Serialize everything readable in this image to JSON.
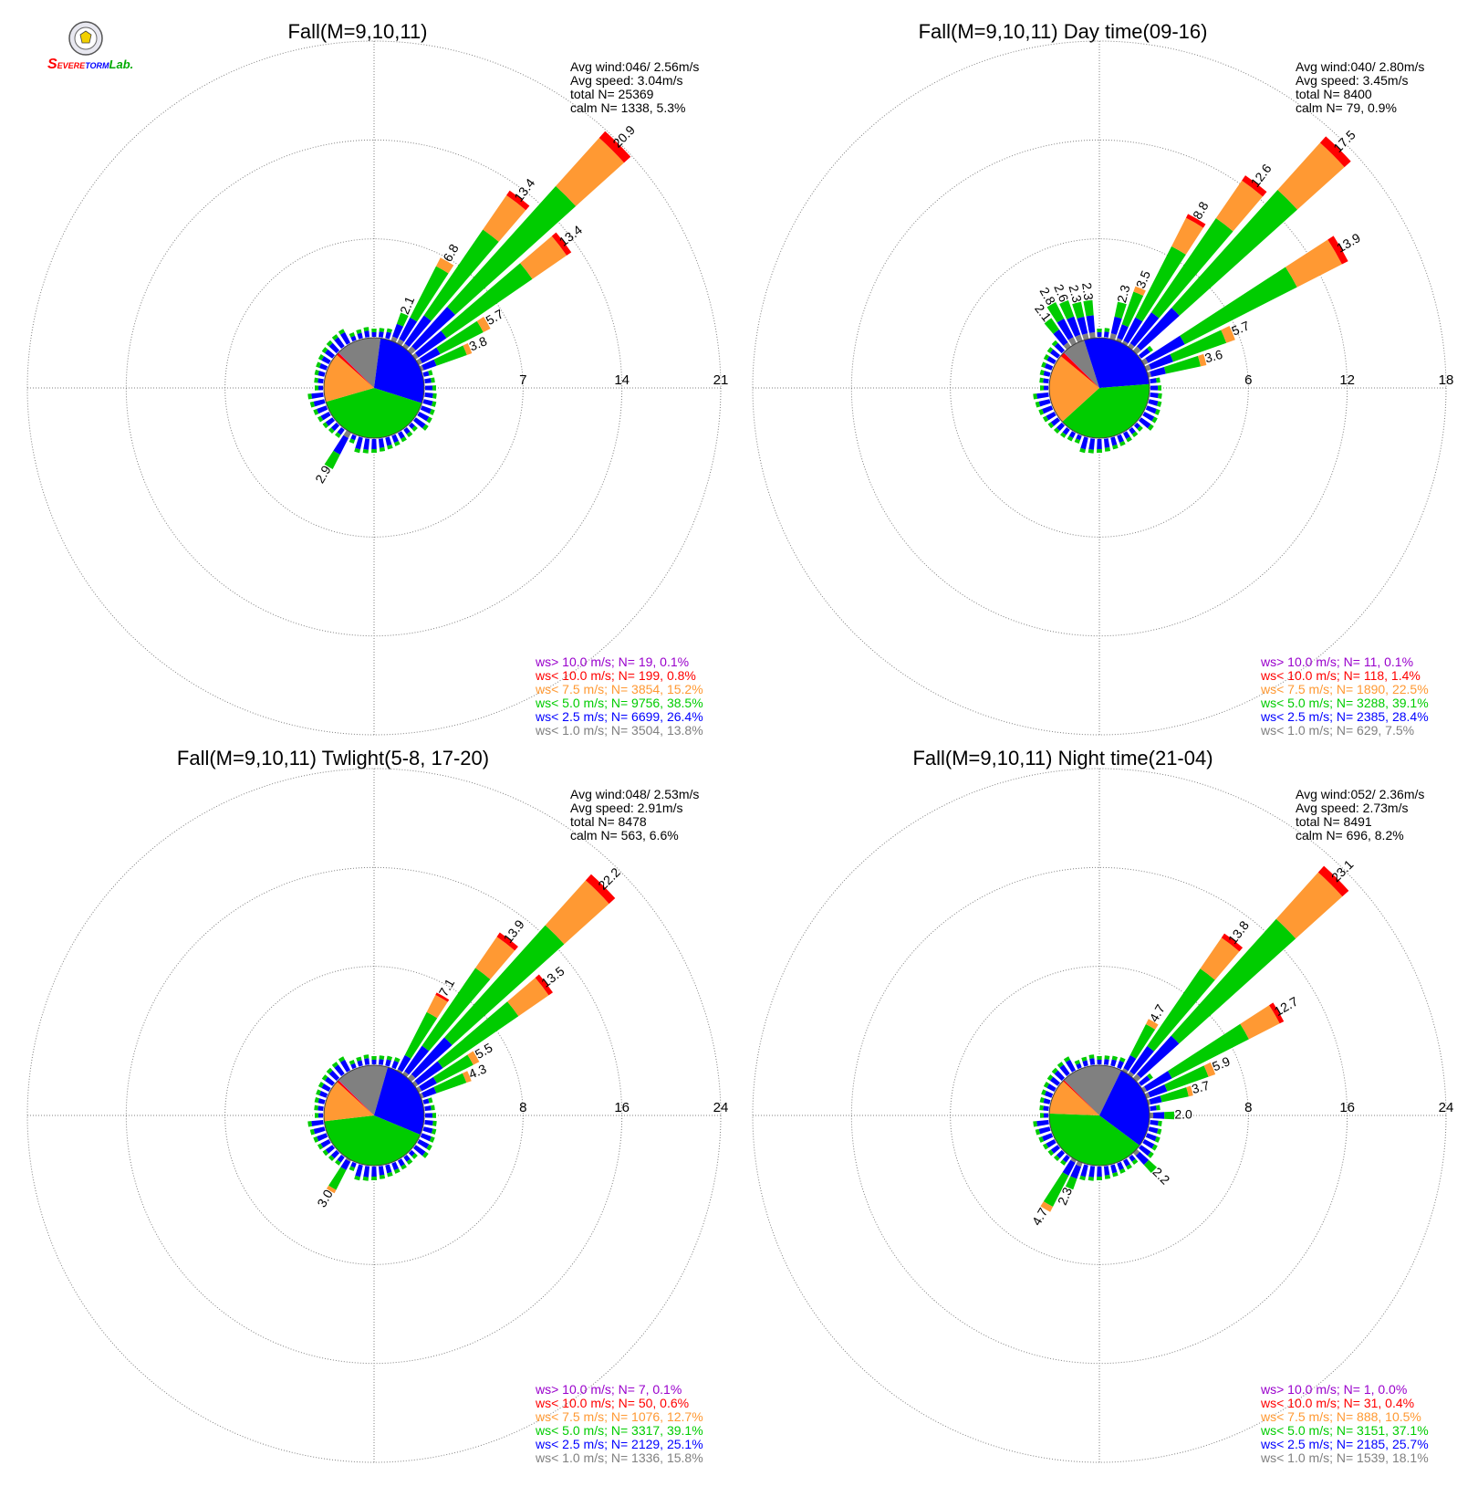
{
  "logo": {
    "text_s1": "S",
    "text_severe": "EVERE",
    "text_storm": "TORM",
    "text_lab": "Lab."
  },
  "colors": {
    "grid": "#808080",
    "ws_gt_10": "#9900cc",
    "ws_lt_10": "#ff0000",
    "ws_lt_7_5": "#ff9933",
    "ws_lt_5": "#00cc00",
    "ws_lt_2_5": "#0000ff",
    "ws_lt_1": "#808080",
    "text": "#000000"
  },
  "chart_data": [
    {
      "type": "wind-rose",
      "title": "Fall(M=9,10,11)",
      "ring_labels": [
        "7",
        "14",
        "21"
      ],
      "rmax": 21,
      "info": [
        "Avg wind:046/ 2.56m/s",
        "Avg speed: 3.04m/s",
        "total N=       25369",
        "calm N=   1338,   5.3%"
      ],
      "legend": [
        {
          "label": "ws> 10.0 m/s; N=     19,  0.1%",
          "color_key": "ws_gt_10"
        },
        {
          "label": "ws< 10.0 m/s; N=    199,  0.8%",
          "color_key": "ws_lt_10"
        },
        {
          "label": "ws<  7.5 m/s; N=  3854, 15.2%",
          "color_key": "ws_lt_7_5"
        },
        {
          "label": "ws<  5.0 m/s; N=  9756, 38.5%",
          "color_key": "ws_lt_5"
        },
        {
          "label": "ws<  2.5 m/s; N=  6699, 26.4%",
          "color_key": "ws_lt_2_5"
        },
        {
          "label": "ws<  1.0 m/s; N=  3504, 13.8%",
          "color_key": "ws_lt_1"
        }
      ],
      "pie": [
        13.8,
        26.4,
        38.5,
        15.2,
        0.8,
        0.1
      ],
      "petals": [
        {
          "dir": 22.5,
          "total": 2.1,
          "label": "2.1"
        },
        {
          "dir": 30,
          "total": 6.8,
          "label": "6.8"
        },
        {
          "dir": 37.5,
          "total": 13.4,
          "label": "13.4"
        },
        {
          "dir": 45,
          "total": 20.9,
          "label": "20.9"
        },
        {
          "dir": 52.5,
          "total": 13.4,
          "label": "13.4"
        },
        {
          "dir": 60,
          "total": 5.7,
          "label": "5.7"
        },
        {
          "dir": 67.5,
          "total": 3.8,
          "label": "3.8"
        },
        {
          "dir": 210,
          "total": 2.9,
          "label": "2.9"
        }
      ]
    },
    {
      "type": "wind-rose",
      "title": "Fall(M=9,10,11) Day time(09-16)",
      "ring_labels": [
        "6",
        "12",
        "18"
      ],
      "rmax": 18,
      "info": [
        "Avg wind:040/ 2.80m/s",
        "Avg speed: 3.45m/s",
        "total N=        8400",
        "calm N=     79,   0.9%"
      ],
      "legend": [
        {
          "label": "ws> 10.0 m/s; N=     11,  0.1%",
          "color_key": "ws_gt_10"
        },
        {
          "label": "ws< 10.0 m/s; N=    118,  1.4%",
          "color_key": "ws_lt_10"
        },
        {
          "label": "ws<  7.5 m/s; N=  1890, 22.5%",
          "color_key": "ws_lt_7_5"
        },
        {
          "label": "ws<  5.0 m/s; N=  3288, 39.1%",
          "color_key": "ws_lt_5"
        },
        {
          "label": "ws<  2.5 m/s; N=  2385, 28.4%",
          "color_key": "ws_lt_2_5"
        },
        {
          "label": "ws<  1.0 m/s; N=   629,   7.5%",
          "color_key": "ws_lt_1"
        }
      ],
      "pie": [
        7.5,
        28.4,
        39.1,
        22.5,
        1.4,
        0.1
      ],
      "petals": [
        {
          "dir": 322.5,
          "total": 2.1,
          "label": "2.1"
        },
        {
          "dir": 330,
          "total": 2.8,
          "label": "2.8"
        },
        {
          "dir": 337.5,
          "total": 2.6,
          "label": "2.6"
        },
        {
          "dir": 345,
          "total": 2.3,
          "label": "2.3"
        },
        {
          "dir": 352.5,
          "total": 2.3,
          "label": "2.3"
        },
        {
          "dir": 15,
          "total": 2.3,
          "label": "2.3"
        },
        {
          "dir": 22.5,
          "total": 3.5,
          "label": "3.5"
        },
        {
          "dir": 30,
          "total": 8.8,
          "label": "8.8"
        },
        {
          "dir": 37.5,
          "total": 12.6,
          "label": "12.6"
        },
        {
          "dir": 45,
          "total": 17.5,
          "label": "17.5"
        },
        {
          "dir": 60,
          "total": 13.9,
          "label": "13.9"
        },
        {
          "dir": 67.5,
          "total": 5.7,
          "label": "5.7"
        },
        {
          "dir": 75,
          "total": 3.6,
          "label": "3.6"
        }
      ]
    },
    {
      "type": "wind-rose",
      "title": "Fall(M=9,10,11) Twlight(5-8, 17-20)",
      "ring_labels": [
        "8",
        "16",
        "24"
      ],
      "rmax": 24,
      "info": [
        "Avg wind:048/ 2.53m/s",
        "Avg speed: 2.91m/s",
        "total N=        8478",
        "calm N=    563,   6.6%"
      ],
      "legend": [
        {
          "label": "ws> 10.0 m/s; N=      7,  0.1%",
          "color_key": "ws_gt_10"
        },
        {
          "label": "ws< 10.0 m/s; N=     50,  0.6%",
          "color_key": "ws_lt_10"
        },
        {
          "label": "ws<  7.5 m/s; N=  1076, 12.7%",
          "color_key": "ws_lt_7_5"
        },
        {
          "label": "ws<  5.0 m/s; N=  3317, 39.1%",
          "color_key": "ws_lt_5"
        },
        {
          "label": "ws<  2.5 m/s; N=  2129, 25.1%",
          "color_key": "ws_lt_2_5"
        },
        {
          "label": "ws<  1.0 m/s; N=  1336, 15.8%",
          "color_key": "ws_lt_1"
        }
      ],
      "pie": [
        15.8,
        25.1,
        39.1,
        12.7,
        0.6,
        0.1
      ],
      "petals": [
        {
          "dir": 30,
          "total": 7.1,
          "label": "7.1"
        },
        {
          "dir": 37.5,
          "total": 13.9,
          "label": "13.9"
        },
        {
          "dir": 45,
          "total": 22.2,
          "label": "22.2"
        },
        {
          "dir": 52.5,
          "total": 13.5,
          "label": "13.5"
        },
        {
          "dir": 60,
          "total": 5.5,
          "label": "5.5"
        },
        {
          "dir": 67.5,
          "total": 4.3,
          "label": "4.3"
        },
        {
          "dir": 210,
          "total": 3.0,
          "label": "3.0"
        }
      ]
    },
    {
      "type": "wind-rose",
      "title": "Fall(M=9,10,11) Night time(21-04)",
      "ring_labels": [
        "8",
        "16",
        "24"
      ],
      "rmax": 24,
      "info": [
        "Avg wind:052/ 2.36m/s",
        "Avg speed: 2.73m/s",
        "total N=        8491",
        "calm N=    696,   8.2%"
      ],
      "legend": [
        {
          "label": "ws> 10.0 m/s; N=      1,  0.0%",
          "color_key": "ws_gt_10"
        },
        {
          "label": "ws< 10.0 m/s; N=     31,  0.4%",
          "color_key": "ws_lt_10"
        },
        {
          "label": "ws<  7.5 m/s; N=    888, 10.5%",
          "color_key": "ws_lt_7_5"
        },
        {
          "label": "ws<  5.0 m/s; N=  3151, 37.1%",
          "color_key": "ws_lt_5"
        },
        {
          "label": "ws<  2.5 m/s; N=  2185, 25.7%",
          "color_key": "ws_lt_2_5"
        },
        {
          "label": "ws<  1.0 m/s; N=  1539, 18.1%",
          "color_key": "ws_lt_1"
        }
      ],
      "pie": [
        18.1,
        25.7,
        37.1,
        10.5,
        0.4,
        0.0
      ],
      "petals": [
        {
          "dir": 30,
          "total": 4.7,
          "label": "4.7"
        },
        {
          "dir": 37.5,
          "total": 13.8,
          "label": "13.8"
        },
        {
          "dir": 45,
          "total": 23.1,
          "label": "23.1"
        },
        {
          "dir": 60,
          "total": 12.7,
          "label": "12.7"
        },
        {
          "dir": 67.5,
          "total": 5.9,
          "label": "5.9"
        },
        {
          "dir": 75,
          "total": 3.7,
          "label": "3.7"
        },
        {
          "dir": 90,
          "total": 2.0,
          "label": "2.0"
        },
        {
          "dir": 135,
          "total": 2.2,
          "label": "2.2"
        },
        {
          "dir": 202.5,
          "total": 2.3,
          "label": "2.3"
        },
        {
          "dir": 210,
          "total": 4.7,
          "label": "4.7"
        }
      ]
    }
  ]
}
